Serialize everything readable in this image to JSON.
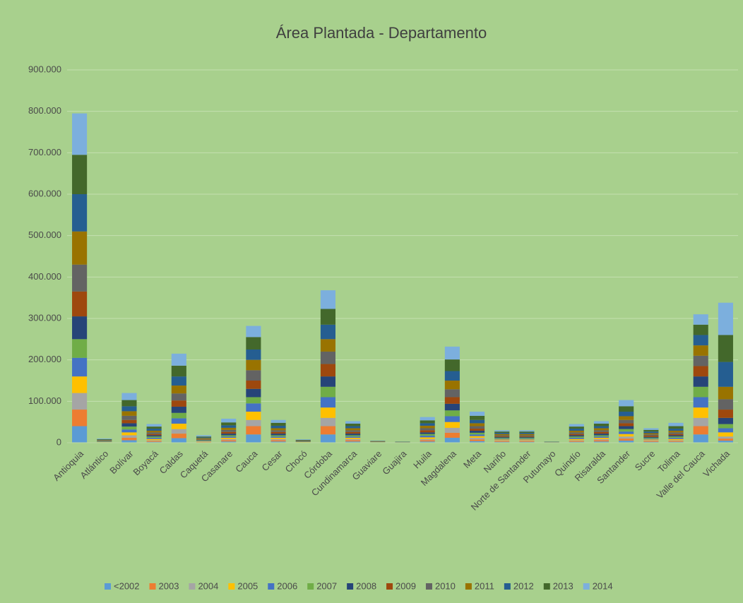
{
  "chart_data": {
    "type": "stacked_bar",
    "title": "Área Plantada - Departamento",
    "categories": [
      "Antioquia",
      "Atlántico",
      "Bolívar",
      "Boyacá",
      "Caldas",
      "Caquetá",
      "Casanare",
      "Cauca",
      "Cesar",
      "Chocó",
      "Córdoba",
      "Cundinamarca",
      "Guaviare",
      "Guajira",
      "Huila",
      "Magdalena",
      "Meta",
      "Nariño",
      "Norte de Santander",
      "Putumayo",
      "Quindío",
      "Risaralda",
      "Santander",
      "Sucre",
      "Tolima",
      "Valle del Cauca",
      "Vichada"
    ],
    "ylim": [
      0,
      900000
    ],
    "yticks": [
      0,
      {
        "value": 100000,
        "label": "100.000"
      },
      {
        "value": 200000,
        "label": "200.000"
      },
      {
        "value": 300000,
        "label": "300.000"
      },
      {
        "value": 400000,
        "label": "400.000"
      },
      {
        "value": 500000,
        "label": "500.000"
      },
      {
        "value": 600000,
        "label": "600.000"
      },
      {
        "value": 700000,
        "label": "700.000"
      },
      {
        "value": 800000,
        "label": "800.000"
      },
      {
        "value": 900000,
        "label": "900.000"
      }
    ],
    "grid": true,
    "legend": "bottom",
    "series": [
      {
        "name": "<2002",
        "color": "#5b9bd5",
        "values": [
          40000,
          500,
          6000,
          2000,
          11000,
          1000,
          3000,
          20000,
          3000,
          400,
          20000,
          3000,
          300,
          200,
          3000,
          12000,
          4000,
          2000,
          2000,
          200,
          2000,
          3000,
          5000,
          2000,
          2000,
          20000,
          5000
        ]
      },
      {
        "name": "2003",
        "color": "#ed7d31",
        "values": [
          40000,
          500,
          6000,
          2000,
          11000,
          1000,
          3000,
          20000,
          3000,
          400,
          20000,
          3000,
          300,
          200,
          3000,
          12000,
          4000,
          2000,
          2000,
          200,
          2000,
          3000,
          5000,
          2000,
          2000,
          20000,
          5000
        ]
      },
      {
        "name": "2004",
        "color": "#a5a5a5",
        "values": [
          40000,
          500,
          6000,
          2000,
          11000,
          1000,
          3000,
          15000,
          3000,
          400,
          20000,
          3000,
          300,
          200,
          3000,
          12000,
          4000,
          2000,
          2000,
          200,
          2000,
          3000,
          5000,
          2000,
          2000,
          20000,
          5000
        ]
      },
      {
        "name": "2005",
        "color": "#ffc000",
        "values": [
          40000,
          600,
          7000,
          3000,
          13000,
          1000,
          3000,
          20000,
          3000,
          500,
          25000,
          3000,
          300,
          200,
          4000,
          14000,
          4000,
          2000,
          2000,
          200,
          3000,
          3000,
          6000,
          2000,
          3000,
          25000,
          10000
        ]
      },
      {
        "name": "2006",
        "color": "#4472c4",
        "values": [
          45000,
          600,
          7000,
          3000,
          13000,
          1000,
          3000,
          20000,
          3000,
          500,
          25000,
          3000,
          300,
          200,
          4000,
          14000,
          4000,
          2000,
          2000,
          200,
          3000,
          3000,
          6000,
          2000,
          3000,
          25000,
          10000
        ]
      },
      {
        "name": "2007",
        "color": "#70ad47",
        "values": [
          45000,
          600,
          7000,
          3000,
          13000,
          1000,
          3000,
          15000,
          3000,
          500,
          25000,
          3000,
          300,
          200,
          4000,
          14000,
          4000,
          2000,
          2000,
          200,
          3000,
          3000,
          6000,
          2000,
          3000,
          25000,
          10000
        ]
      },
      {
        "name": "2008",
        "color": "#264478",
        "values": [
          55000,
          700,
          8000,
          3000,
          15000,
          1000,
          4000,
          20000,
          4000,
          600,
          25000,
          4000,
          400,
          200,
          4000,
          16000,
          5000,
          2000,
          2000,
          200,
          3000,
          4000,
          7000,
          2000,
          3000,
          25000,
          15000
        ]
      },
      {
        "name": "2009",
        "color": "#9e480e",
        "values": [
          60000,
          700,
          8000,
          3000,
          15000,
          1000,
          4000,
          20000,
          4000,
          600,
          30000,
          4000,
          400,
          200,
          5000,
          16000,
          5000,
          2000,
          2000,
          200,
          3000,
          4000,
          7000,
          3000,
          3000,
          25000,
          20000
        ]
      },
      {
        "name": "2010",
        "color": "#636363",
        "values": [
          65000,
          800,
          10000,
          4000,
          17000,
          1000,
          5000,
          25000,
          4000,
          600,
          30000,
          4000,
          400,
          200,
          5000,
          19000,
          6000,
          2000,
          2000,
          200,
          4000,
          4000,
          8000,
          3000,
          4000,
          25000,
          25000
        ]
      },
      {
        "name": "2011",
        "color": "#997300",
        "values": [
          80000,
          900,
          11000,
          4000,
          19000,
          2000,
          5000,
          25000,
          5000,
          700,
          30000,
          5000,
          400,
          300,
          6000,
          21000,
          7000,
          3000,
          3000,
          300,
          4000,
          5000,
          9000,
          3000,
          4000,
          25000,
          30000
        ]
      },
      {
        "name": "2012",
        "color": "#255e91",
        "values": [
          90000,
          1000,
          12000,
          5000,
          22000,
          2000,
          6000,
          25000,
          6000,
          800,
          35000,
          5000,
          400,
          300,
          6000,
          23000,
          8000,
          3000,
          3000,
          300,
          5000,
          5000,
          11000,
          4000,
          5000,
          25000,
          60000
        ]
      },
      {
        "name": "2013",
        "color": "#43682b",
        "values": [
          95000,
          1200,
          15000,
          5000,
          26000,
          2000,
          7000,
          30000,
          7000,
          900,
          38000,
          6000,
          500,
          300,
          7000,
          28000,
          10000,
          3000,
          3000,
          300,
          5000,
          6000,
          13000,
          4000,
          6000,
          25000,
          65000
        ]
      },
      {
        "name": "2014",
        "color": "#7cafdd",
        "values": [
          100000,
          1400,
          17000,
          6000,
          29000,
          3000,
          9000,
          27000,
          7000,
          1100,
          45000,
          6000,
          700,
          300,
          8000,
          31000,
          10000,
          3000,
          3000,
          300,
          6000,
          6000,
          15000,
          4000,
          8000,
          25000,
          78000
        ]
      }
    ]
  }
}
